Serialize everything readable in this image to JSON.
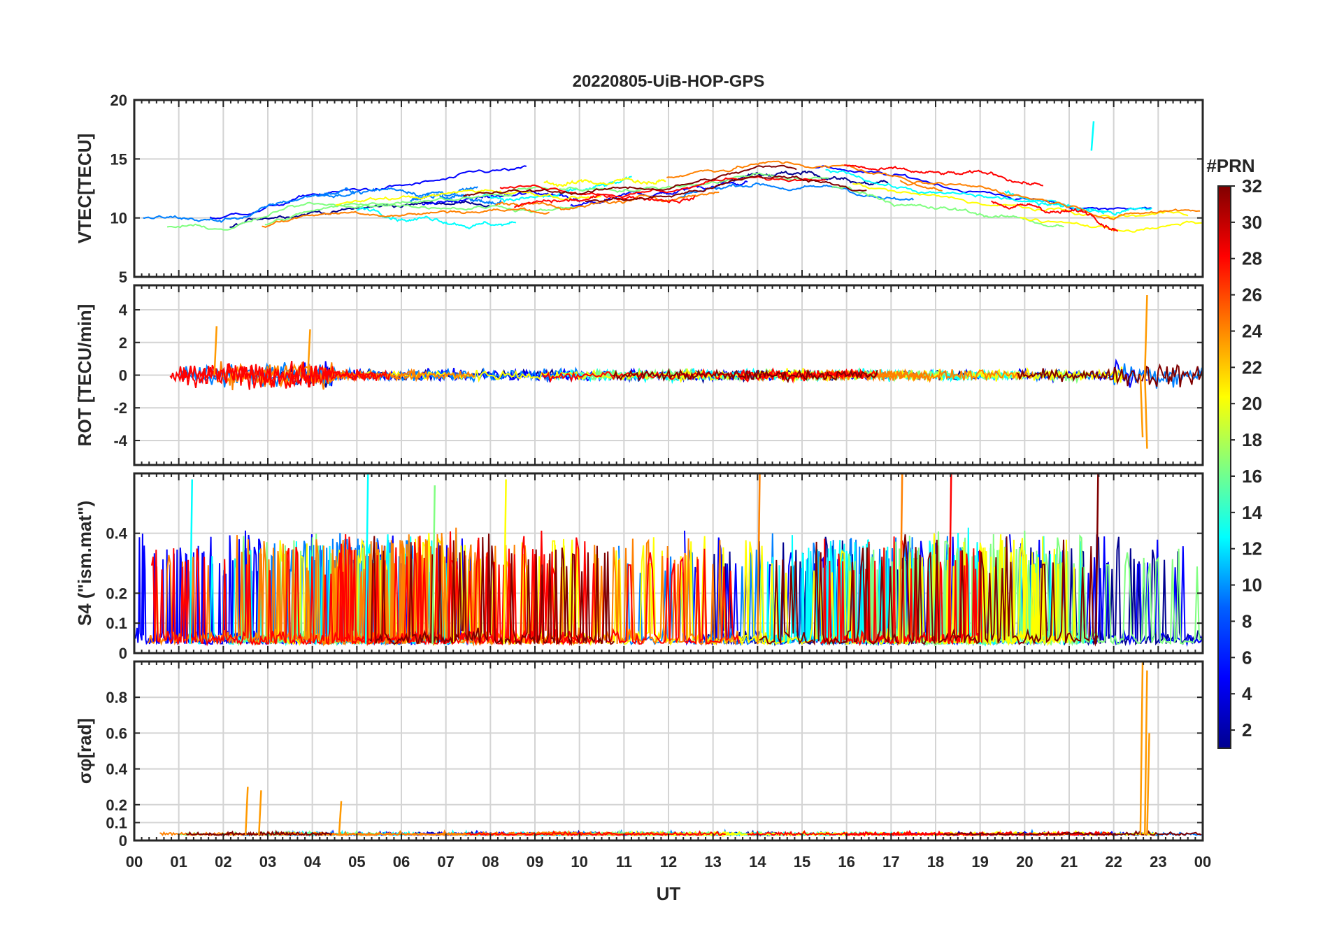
{
  "figure": {
    "title": "20220805-UiB-HOP-GPS",
    "xlabel": "UT",
    "x_tick_labels": [
      "00",
      "01",
      "02",
      "03",
      "04",
      "05",
      "06",
      "07",
      "08",
      "09",
      "10",
      "11",
      "12",
      "13",
      "14",
      "15",
      "16",
      "17",
      "18",
      "19",
      "20",
      "21",
      "22",
      "23",
      "00"
    ]
  },
  "colorbar": {
    "label": "#PRN",
    "range": [
      1,
      32
    ],
    "ticks": [
      2,
      4,
      6,
      8,
      10,
      12,
      14,
      16,
      18,
      20,
      22,
      24,
      26,
      28,
      30,
      32
    ],
    "colormap": "jet",
    "colors": [
      "#00008f",
      "#0000ff",
      "#0080ff",
      "#00ffff",
      "#80ff80",
      "#ffff00",
      "#ff8000",
      "#ff0000",
      "#800000"
    ]
  },
  "chart_data": [
    {
      "type": "line",
      "id": "vtec",
      "ylabel": "VTEC[TECU]",
      "ylim": [
        5,
        20
      ],
      "yticks": [
        5,
        10,
        15,
        20
      ],
      "xlim": [
        0,
        24
      ],
      "grid": true,
      "series_note": "one line per GPS PRN 1-32, colored by PRN",
      "typical_values": {
        "x": [
          0,
          2,
          4,
          6,
          8,
          10,
          12,
          14,
          16,
          18,
          20,
          22,
          24
        ],
        "y": [
          9.5,
          9.0,
          11.0,
          11.5,
          12.0,
          12.0,
          12.5,
          14.0,
          13.5,
          12.0,
          11.0,
          10.0,
          10.5
        ]
      },
      "highlights": [
        {
          "x": 21.5,
          "y": 18.2,
          "prn": 11
        }
      ]
    },
    {
      "type": "line",
      "id": "rot",
      "ylabel": "ROT [TECU/min]",
      "ylim": [
        -5.5,
        5.5
      ],
      "yticks": [
        -4,
        -2,
        0,
        2,
        4
      ],
      "xlim": [
        0,
        24
      ],
      "grid": true,
      "series_note": "rate of TEC, mostly near 0",
      "highlights": [
        {
          "x": 1.8,
          "y": 3.0
        },
        {
          "x": 3.9,
          "y": 2.8
        },
        {
          "x": 22.7,
          "y": 4.9
        },
        {
          "x": 22.7,
          "y": -4.5
        },
        {
          "x": 22.6,
          "y": -3.8
        }
      ]
    },
    {
      "type": "line",
      "id": "s4",
      "ylabel": "S4 (\"ism.mat\")",
      "ylim": [
        0,
        0.6
      ],
      "yticks": [
        0,
        0.1,
        0.2,
        0.4
      ],
      "xlim": [
        0,
        24
      ],
      "grid": true,
      "series_note": "amplitude scintillation index",
      "highlights": [
        {
          "x": 1.25,
          "y": 0.58
        },
        {
          "x": 5.2,
          "y": 0.6
        },
        {
          "x": 6.7,
          "y": 0.56
        },
        {
          "x": 8.3,
          "y": 0.58
        },
        {
          "x": 14.0,
          "y": 0.6
        },
        {
          "x": 17.2,
          "y": 0.6
        },
        {
          "x": 18.3,
          "y": 0.6
        },
        {
          "x": 21.6,
          "y": 0.6
        }
      ]
    },
    {
      "type": "line",
      "id": "sigma_phi",
      "ylabel": "σφ[rad]",
      "ylim": [
        0,
        1
      ],
      "yticks": [
        0,
        0.1,
        0.2,
        0.4,
        0.6,
        0.8
      ],
      "xlim": [
        0,
        24
      ],
      "grid": true,
      "series_note": "phase scintillation index",
      "highlights": [
        {
          "x": 2.5,
          "y": 0.3
        },
        {
          "x": 2.8,
          "y": 0.28
        },
        {
          "x": 4.6,
          "y": 0.22
        },
        {
          "x": 22.6,
          "y": 1.0
        },
        {
          "x": 22.7,
          "y": 0.95
        },
        {
          "x": 22.75,
          "y": 0.6
        }
      ]
    }
  ]
}
